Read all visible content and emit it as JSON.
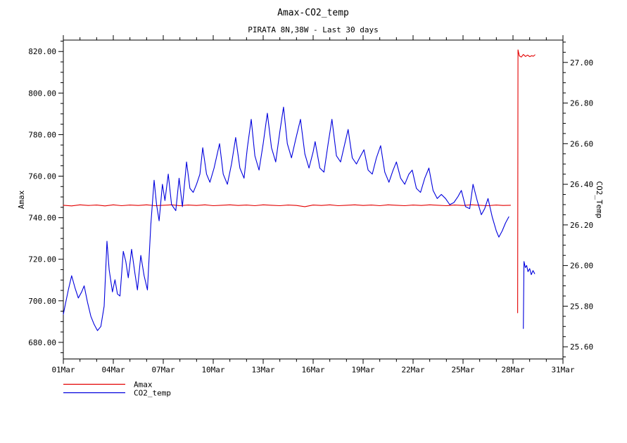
{
  "chart_data": {
    "type": "line",
    "title": "Amax-CO2_temp",
    "subtitle": "PIRATA 8N,38W - Last 30 days",
    "legend_position": "bottom-left",
    "grid": false,
    "x_axis": {
      "min": 0,
      "max": 30,
      "majors": [
        0,
        3,
        6,
        9,
        12,
        15,
        18,
        21,
        24,
        27,
        30
      ],
      "labels": [
        "01Mar",
        "04Mar",
        "07Mar",
        "10Mar",
        "13Mar",
        "16Mar",
        "19Mar",
        "22Mar",
        "25Mar",
        "28Mar",
        "31Mar"
      ],
      "minor_step": 1
    },
    "y_left": {
      "label": "Amax",
      "min": 672.0,
      "max": 825.5,
      "majors": [
        680,
        700,
        720,
        740,
        760,
        780,
        800,
        820
      ],
      "minor_step": 5,
      "decimals": 2
    },
    "y_right": {
      "label": "CO2_Temp",
      "min": 25.54,
      "max": 27.11,
      "majors": [
        25.6,
        25.8,
        26.0,
        26.2,
        26.4,
        26.6,
        26.8,
        27.0
      ],
      "minor_step": 0.05,
      "decimals": 2
    },
    "series": [
      {
        "name": "Amax",
        "axis": "left",
        "color": "#e30000",
        "segments": [
          [
            [
              0,
              746
            ],
            [
              0.5,
              745.7
            ],
            [
              1,
              746.2
            ],
            [
              1.5,
              745.9
            ],
            [
              2,
              746.1
            ],
            [
              2.5,
              745.7
            ],
            [
              3,
              746.2
            ],
            [
              3.5,
              745.8
            ],
            [
              4,
              746.1
            ],
            [
              4.5,
              745.9
            ],
            [
              5,
              746.2
            ],
            [
              5.5,
              745.8
            ],
            [
              6,
              746
            ],
            [
              6.5,
              746.2
            ],
            [
              7,
              745.8
            ],
            [
              7.5,
              746.1
            ],
            [
              8,
              745.9
            ],
            [
              8.5,
              746.2
            ],
            [
              9,
              745.8
            ],
            [
              9.5,
              746
            ],
            [
              10,
              746.2
            ],
            [
              10.5,
              745.9
            ],
            [
              11,
              746.1
            ],
            [
              11.5,
              745.8
            ],
            [
              12,
              746.2
            ],
            [
              12.5,
              746
            ],
            [
              13,
              745.8
            ],
            [
              13.5,
              746.1
            ],
            [
              14,
              745.9
            ],
            [
              14.5,
              745.3
            ],
            [
              15,
              746.1
            ],
            [
              15.5,
              745.9
            ],
            [
              16,
              746.2
            ],
            [
              16.5,
              745.8
            ],
            [
              17,
              746
            ],
            [
              17.5,
              746.2
            ],
            [
              18,
              745.9
            ],
            [
              18.5,
              746.1
            ],
            [
              19,
              745.8
            ],
            [
              19.5,
              746.2
            ],
            [
              20,
              746
            ],
            [
              20.5,
              745.8
            ],
            [
              21,
              746.1
            ],
            [
              21.5,
              745.9
            ],
            [
              22,
              746.2
            ],
            [
              22.5,
              746
            ],
            [
              23,
              745.8
            ],
            [
              23.5,
              746.1
            ],
            [
              24,
              745.9
            ],
            [
              24.5,
              746.2
            ],
            [
              25,
              746
            ],
            [
              25.5,
              745.8
            ],
            [
              26,
              746.1
            ],
            [
              26.4,
              745.9
            ],
            [
              26.85,
              746
            ]
          ],
          [
            [
              27.28,
              694.2
            ],
            [
              27.3,
              820.8
            ],
            [
              27.38,
              817.9
            ],
            [
              27.5,
              817.3
            ],
            [
              27.62,
              818.6
            ],
            [
              27.75,
              817.6
            ],
            [
              27.88,
              818.3
            ],
            [
              28,
              817.5
            ],
            [
              28.12,
              818
            ],
            [
              28.22,
              817.7
            ],
            [
              28.32,
              818.4
            ]
          ]
        ]
      },
      {
        "name": "CO2_temp",
        "axis": "right",
        "color": "#0000dd",
        "segments": [
          [
            [
              0,
              25.76
            ],
            [
              0.15,
              25.82
            ],
            [
              0.3,
              25.88
            ],
            [
              0.5,
              25.95
            ],
            [
              0.7,
              25.89
            ],
            [
              0.9,
              25.84
            ],
            [
              1.1,
              25.87
            ],
            [
              1.25,
              25.9
            ],
            [
              1.45,
              25.82
            ],
            [
              1.65,
              25.75
            ],
            [
              1.85,
              25.71
            ],
            [
              2.05,
              25.68
            ],
            [
              2.25,
              25.7
            ],
            [
              2.45,
              25.8
            ],
            [
              2.62,
              26.12
            ],
            [
              2.75,
              25.98
            ],
            [
              2.95,
              25.87
            ],
            [
              3.1,
              25.93
            ],
            [
              3.25,
              25.86
            ],
            [
              3.4,
              25.85
            ],
            [
              3.6,
              26.07
            ],
            [
              3.75,
              26.02
            ],
            [
              3.9,
              25.94
            ],
            [
              4.1,
              26.08
            ],
            [
              4.3,
              25.96
            ],
            [
              4.45,
              25.88
            ],
            [
              4.65,
              26.05
            ],
            [
              4.85,
              25.95
            ],
            [
              5.05,
              25.88
            ],
            [
              5.25,
              26.2
            ],
            [
              5.45,
              26.42
            ],
            [
              5.6,
              26.3
            ],
            [
              5.75,
              26.22
            ],
            [
              5.95,
              26.4
            ],
            [
              6.1,
              26.32
            ],
            [
              6.3,
              26.45
            ],
            [
              6.5,
              26.3
            ],
            [
              6.75,
              26.27
            ],
            [
              6.95,
              26.43
            ],
            [
              7.15,
              26.29
            ],
            [
              7.4,
              26.51
            ],
            [
              7.6,
              26.38
            ],
            [
              7.8,
              26.36
            ],
            [
              8,
              26.4
            ],
            [
              8.2,
              26.45
            ],
            [
              8.37,
              26.58
            ],
            [
              8.6,
              26.45
            ],
            [
              8.8,
              26.41
            ],
            [
              9.05,
              26.48
            ],
            [
              9.38,
              26.6
            ],
            [
              9.6,
              26.45
            ],
            [
              9.85,
              26.4
            ],
            [
              10.1,
              26.5
            ],
            [
              10.35,
              26.63
            ],
            [
              10.6,
              26.48
            ],
            [
              10.85,
              26.43
            ],
            [
              11.05,
              26.58
            ],
            [
              11.28,
              26.72
            ],
            [
              11.5,
              26.54
            ],
            [
              11.75,
              26.47
            ],
            [
              12,
              26.6
            ],
            [
              12.25,
              26.75
            ],
            [
              12.5,
              26.58
            ],
            [
              12.75,
              26.51
            ],
            [
              13,
              26.66
            ],
            [
              13.22,
              26.78
            ],
            [
              13.45,
              26.6
            ],
            [
              13.7,
              26.53
            ],
            [
              13.95,
              26.62
            ],
            [
              14.24,
              26.72
            ],
            [
              14.5,
              26.55
            ],
            [
              14.75,
              26.48
            ],
            [
              15,
              26.56
            ],
            [
              15.12,
              26.61
            ],
            [
              15.4,
              26.48
            ],
            [
              15.65,
              26.46
            ],
            [
              15.9,
              26.6
            ],
            [
              16.13,
              26.72
            ],
            [
              16.4,
              26.54
            ],
            [
              16.65,
              26.51
            ],
            [
              16.9,
              26.6
            ],
            [
              17.1,
              26.67
            ],
            [
              17.35,
              26.53
            ],
            [
              17.6,
              26.5
            ],
            [
              17.85,
              26.54
            ],
            [
              18.05,
              26.57
            ],
            [
              18.3,
              26.47
            ],
            [
              18.55,
              26.45
            ],
            [
              18.8,
              26.53
            ],
            [
              19.05,
              26.59
            ],
            [
              19.3,
              26.46
            ],
            [
              19.55,
              26.41
            ],
            [
              19.8,
              26.47
            ],
            [
              20,
              26.51
            ],
            [
              20.25,
              26.43
            ],
            [
              20.5,
              26.4
            ],
            [
              20.75,
              26.45
            ],
            [
              20.95,
              26.47
            ],
            [
              21.2,
              26.38
            ],
            [
              21.45,
              26.36
            ],
            [
              21.7,
              26.43
            ],
            [
              21.95,
              26.48
            ],
            [
              22.2,
              26.37
            ],
            [
              22.45,
              26.33
            ],
            [
              22.7,
              26.35
            ],
            [
              22.95,
              26.33
            ],
            [
              23.2,
              26.3
            ],
            [
              23.45,
              26.31
            ],
            [
              23.7,
              26.34
            ],
            [
              23.9,
              26.37
            ],
            [
              24.15,
              26.29
            ],
            [
              24.4,
              26.28
            ],
            [
              24.6,
              26.4
            ],
            [
              24.85,
              26.32
            ],
            [
              25.1,
              26.25
            ],
            [
              25.3,
              26.28
            ],
            [
              25.5,
              26.33
            ],
            [
              25.75,
              26.24
            ],
            [
              26,
              26.17
            ],
            [
              26.15,
              26.14
            ],
            [
              26.35,
              26.17
            ],
            [
              26.55,
              26.21
            ],
            [
              26.75,
              26.24
            ]
          ],
          [
            [
              27.62,
              25.69
            ],
            [
              27.66,
              26.02
            ],
            [
              27.74,
              25.99
            ],
            [
              27.82,
              26.0
            ],
            [
              27.9,
              25.97
            ],
            [
              28.0,
              25.985
            ],
            [
              28.1,
              25.955
            ],
            [
              28.2,
              25.975
            ],
            [
              28.3,
              25.96
            ]
          ]
        ]
      }
    ],
    "legend": {
      "entries": [
        "Amax",
        "CO2_temp"
      ]
    }
  }
}
